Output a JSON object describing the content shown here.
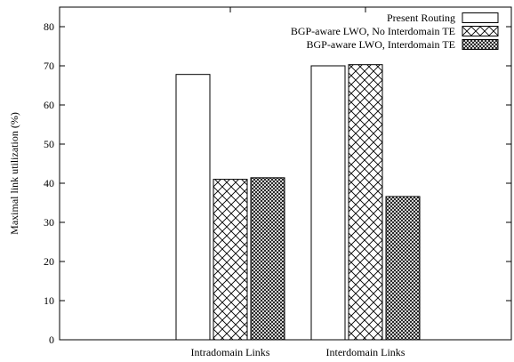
{
  "chart_data": {
    "type": "bar",
    "title": "",
    "xlabel": "",
    "ylabel": "Maximal link utilization (%)",
    "ylim": [
      0,
      85
    ],
    "yticks": [
      0,
      10,
      20,
      30,
      40,
      50,
      60,
      70,
      80
    ],
    "categories": [
      "Intradomain Links",
      "Interdomain Links"
    ],
    "grid": false,
    "legend_position": "top-right",
    "series": [
      {
        "name": "Present Routing",
        "values": [
          67.8,
          70.0
        ],
        "pattern": "none"
      },
      {
        "name": "BGP-aware LWO, No Interdomain TE",
        "values": [
          41.0,
          70.3
        ],
        "pattern": "crosshatch-sparse"
      },
      {
        "name": "BGP-aware LWO, Interdomain TE",
        "values": [
          41.4,
          36.6
        ],
        "pattern": "crosshatch-dense"
      }
    ]
  }
}
